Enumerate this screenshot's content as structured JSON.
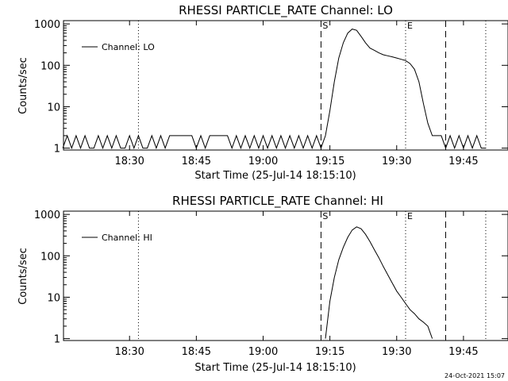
{
  "footer": {
    "date": "24-Oct-2021 15:07"
  },
  "chart_data": [
    {
      "type": "line",
      "title": "RHESSI PARTICLE_RATE Channel: LO",
      "xlabel": "Start Time (25-Jul-14 18:15:10)",
      "ylabel": "Counts/sec",
      "y_scale": "log",
      "ylim": [
        0.9,
        1200
      ],
      "xlim": [
        "18:15:10",
        "19:55"
      ],
      "x_ticks": [
        "18:30",
        "18:45",
        "19:00",
        "19:15",
        "19:30",
        "19:45"
      ],
      "y_ticks": [
        "1",
        "10",
        "100",
        "1000"
      ],
      "legend": {
        "label": "Channel: LO",
        "position": "top-left"
      },
      "markers": [
        {
          "label": "S",
          "time": "19:13"
        },
        {
          "label": "E",
          "time": "19:32"
        }
      ],
      "dashed_lines": [
        "19:13",
        "19:41"
      ],
      "dotted_lines": [
        "18:32",
        "19:32",
        "19:50"
      ],
      "series": [
        {
          "x": [
            "18:15",
            "18:16",
            "18:17",
            "18:18",
            "18:19",
            "18:20",
            "18:21",
            "18:22",
            "18:23",
            "18:24",
            "18:25",
            "18:26",
            "18:27",
            "18:28",
            "18:29",
            "18:30",
            "18:31",
            "18:32",
            "18:33",
            "18:34",
            "18:35",
            "18:36",
            "18:37",
            "18:38",
            "18:39",
            "18:40",
            "18:41",
            "18:42",
            "18:43",
            "18:44",
            "18:45",
            "18:46",
            "18:47",
            "18:48",
            "18:49",
            "18:50",
            "18:51",
            "18:52",
            "18:53",
            "18:54",
            "18:55",
            "18:56",
            "18:57",
            "18:58",
            "18:59",
            "19:00",
            "19:01",
            "19:02",
            "19:03",
            "19:04",
            "19:05",
            "19:06",
            "19:07",
            "19:08",
            "19:09",
            "19:10",
            "19:11",
            "19:12",
            "19:13",
            "19:14",
            "19:15",
            "19:16",
            "19:17",
            "19:18",
            "19:19",
            "19:20",
            "19:21",
            "19:22",
            "19:23",
            "19:24",
            "19:25",
            "19:26",
            "19:27",
            "19:28",
            "19:29",
            "19:30",
            "19:31",
            "19:32",
            "19:33",
            "19:34",
            "19:35",
            "19:36",
            "19:37",
            "19:38",
            "19:39",
            "19:40",
            "19:41",
            "19:42",
            "19:43",
            "19:44",
            "19:45",
            "19:46",
            "19:47",
            "19:48",
            "19:49",
            "19:50"
          ],
          "values": [
            1,
            2,
            1,
            2,
            1,
            2,
            1,
            1,
            2,
            1,
            2,
            1,
            2,
            1,
            1,
            2,
            1,
            2,
            1,
            1,
            2,
            1,
            2,
            1,
            2,
            2,
            2,
            2,
            2,
            2,
            1,
            2,
            1,
            2,
            2,
            2,
            2,
            2,
            1,
            2,
            1,
            2,
            1,
            2,
            1,
            2,
            1,
            2,
            1,
            2,
            1,
            2,
            1,
            2,
            1,
            2,
            1,
            2,
            1,
            2,
            8,
            40,
            150,
            350,
            600,
            750,
            700,
            500,
            350,
            260,
            230,
            200,
            180,
            170,
            160,
            150,
            140,
            130,
            110,
            80,
            40,
            12,
            4,
            2,
            2,
            2,
            1,
            2,
            1,
            2,
            1,
            2,
            1,
            2,
            1,
            1
          ]
        }
      ]
    },
    {
      "type": "line",
      "title": "RHESSI PARTICLE_RATE Channel: HI",
      "xlabel": "Start Time (25-Jul-14 18:15:10)",
      "ylabel": "Counts/sec",
      "y_scale": "log",
      "ylim": [
        0.9,
        1200
      ],
      "xlim": [
        "18:15:10",
        "19:55"
      ],
      "x_ticks": [
        "18:30",
        "18:45",
        "19:00",
        "19:15",
        "19:30",
        "19:45"
      ],
      "y_ticks": [
        "1",
        "10",
        "100",
        "1000"
      ],
      "legend": {
        "label": "Channel: HI",
        "position": "top-left"
      },
      "markers": [
        {
          "label": "S",
          "time": "19:13"
        },
        {
          "label": "E",
          "time": "19:32"
        }
      ],
      "dashed_lines": [
        "19:13",
        "19:41"
      ],
      "dotted_lines": [
        "18:32",
        "19:32",
        "19:50"
      ],
      "series": [
        {
          "x": [
            "19:14",
            "19:15",
            "19:16",
            "19:17",
            "19:18",
            "19:19",
            "19:20",
            "19:21",
            "19:22",
            "19:23",
            "19:24",
            "19:25",
            "19:26",
            "19:27",
            "19:28",
            "19:29",
            "19:30",
            "19:31",
            "19:32",
            "19:33",
            "19:34",
            "19:35",
            "19:36",
            "19:37",
            "19:38"
          ],
          "values": [
            1,
            8,
            30,
            80,
            160,
            280,
            420,
            500,
            450,
            330,
            220,
            140,
            90,
            55,
            35,
            22,
            14,
            10,
            7,
            5,
            4,
            3,
            2.5,
            2,
            1
          ]
        }
      ]
    }
  ]
}
